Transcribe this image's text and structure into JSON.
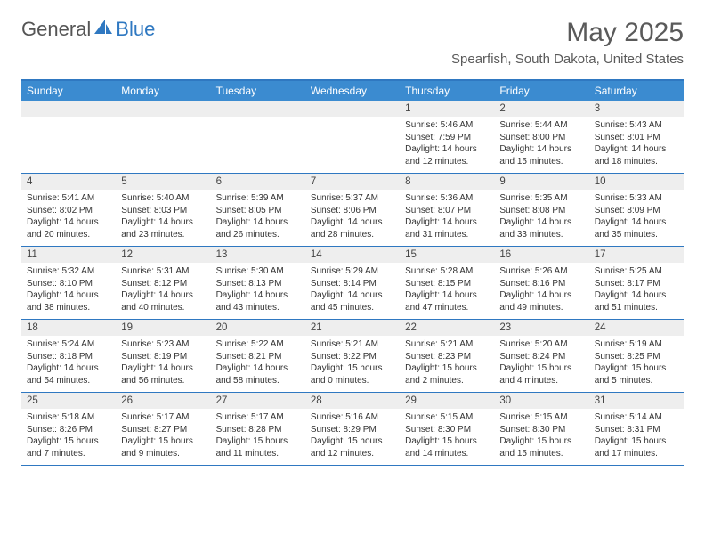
{
  "logo": {
    "text1": "General",
    "text2": "Blue"
  },
  "title": "May 2025",
  "location": "Spearfish, South Dakota, United States",
  "colors": {
    "header_bg": "#3b8bd0",
    "border": "#2f78c1",
    "daynum_bg": "#eeeeee",
    "text": "#333333"
  },
  "day_headers": [
    "Sunday",
    "Monday",
    "Tuesday",
    "Wednesday",
    "Thursday",
    "Friday",
    "Saturday"
  ],
  "weeks": [
    {
      "nums": [
        "",
        "",
        "",
        "",
        "1",
        "2",
        "3"
      ],
      "cells": [
        {},
        {},
        {},
        {},
        {
          "sunrise": "5:46 AM",
          "sunset": "7:59 PM",
          "daylight": "14 hours and 12 minutes."
        },
        {
          "sunrise": "5:44 AM",
          "sunset": "8:00 PM",
          "daylight": "14 hours and 15 minutes."
        },
        {
          "sunrise": "5:43 AM",
          "sunset": "8:01 PM",
          "daylight": "14 hours and 18 minutes."
        }
      ]
    },
    {
      "nums": [
        "4",
        "5",
        "6",
        "7",
        "8",
        "9",
        "10"
      ],
      "cells": [
        {
          "sunrise": "5:41 AM",
          "sunset": "8:02 PM",
          "daylight": "14 hours and 20 minutes."
        },
        {
          "sunrise": "5:40 AM",
          "sunset": "8:03 PM",
          "daylight": "14 hours and 23 minutes."
        },
        {
          "sunrise": "5:39 AM",
          "sunset": "8:05 PM",
          "daylight": "14 hours and 26 minutes."
        },
        {
          "sunrise": "5:37 AM",
          "sunset": "8:06 PM",
          "daylight": "14 hours and 28 minutes."
        },
        {
          "sunrise": "5:36 AM",
          "sunset": "8:07 PM",
          "daylight": "14 hours and 31 minutes."
        },
        {
          "sunrise": "5:35 AM",
          "sunset": "8:08 PM",
          "daylight": "14 hours and 33 minutes."
        },
        {
          "sunrise": "5:33 AM",
          "sunset": "8:09 PM",
          "daylight": "14 hours and 35 minutes."
        }
      ]
    },
    {
      "nums": [
        "11",
        "12",
        "13",
        "14",
        "15",
        "16",
        "17"
      ],
      "cells": [
        {
          "sunrise": "5:32 AM",
          "sunset": "8:10 PM",
          "daylight": "14 hours and 38 minutes."
        },
        {
          "sunrise": "5:31 AM",
          "sunset": "8:12 PM",
          "daylight": "14 hours and 40 minutes."
        },
        {
          "sunrise": "5:30 AM",
          "sunset": "8:13 PM",
          "daylight": "14 hours and 43 minutes."
        },
        {
          "sunrise": "5:29 AM",
          "sunset": "8:14 PM",
          "daylight": "14 hours and 45 minutes."
        },
        {
          "sunrise": "5:28 AM",
          "sunset": "8:15 PM",
          "daylight": "14 hours and 47 minutes."
        },
        {
          "sunrise": "5:26 AM",
          "sunset": "8:16 PM",
          "daylight": "14 hours and 49 minutes."
        },
        {
          "sunrise": "5:25 AM",
          "sunset": "8:17 PM",
          "daylight": "14 hours and 51 minutes."
        }
      ]
    },
    {
      "nums": [
        "18",
        "19",
        "20",
        "21",
        "22",
        "23",
        "24"
      ],
      "cells": [
        {
          "sunrise": "5:24 AM",
          "sunset": "8:18 PM",
          "daylight": "14 hours and 54 minutes."
        },
        {
          "sunrise": "5:23 AM",
          "sunset": "8:19 PM",
          "daylight": "14 hours and 56 minutes."
        },
        {
          "sunrise": "5:22 AM",
          "sunset": "8:21 PM",
          "daylight": "14 hours and 58 minutes."
        },
        {
          "sunrise": "5:21 AM",
          "sunset": "8:22 PM",
          "daylight": "15 hours and 0 minutes."
        },
        {
          "sunrise": "5:21 AM",
          "sunset": "8:23 PM",
          "daylight": "15 hours and 2 minutes."
        },
        {
          "sunrise": "5:20 AM",
          "sunset": "8:24 PM",
          "daylight": "15 hours and 4 minutes."
        },
        {
          "sunrise": "5:19 AM",
          "sunset": "8:25 PM",
          "daylight": "15 hours and 5 minutes."
        }
      ]
    },
    {
      "nums": [
        "25",
        "26",
        "27",
        "28",
        "29",
        "30",
        "31"
      ],
      "cells": [
        {
          "sunrise": "5:18 AM",
          "sunset": "8:26 PM",
          "daylight": "15 hours and 7 minutes."
        },
        {
          "sunrise": "5:17 AM",
          "sunset": "8:27 PM",
          "daylight": "15 hours and 9 minutes."
        },
        {
          "sunrise": "5:17 AM",
          "sunset": "8:28 PM",
          "daylight": "15 hours and 11 minutes."
        },
        {
          "sunrise": "5:16 AM",
          "sunset": "8:29 PM",
          "daylight": "15 hours and 12 minutes."
        },
        {
          "sunrise": "5:15 AM",
          "sunset": "8:30 PM",
          "daylight": "15 hours and 14 minutes."
        },
        {
          "sunrise": "5:15 AM",
          "sunset": "8:30 PM",
          "daylight": "15 hours and 15 minutes."
        },
        {
          "sunrise": "5:14 AM",
          "sunset": "8:31 PM",
          "daylight": "15 hours and 17 minutes."
        }
      ]
    }
  ],
  "labels": {
    "sunrise": "Sunrise: ",
    "sunset": "Sunset: ",
    "daylight": "Daylight: "
  }
}
